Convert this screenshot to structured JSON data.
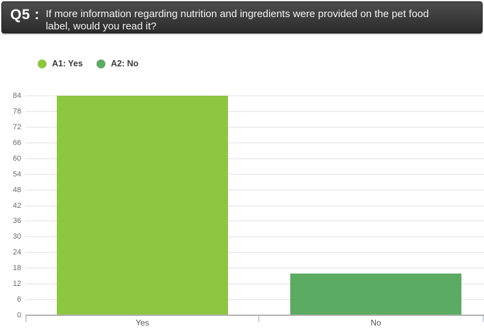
{
  "header": {
    "q_label": "Q5 :",
    "question": "If more information regarding nutrition and ingredients were provided on the pet food label, would you read it?"
  },
  "legend": {
    "items": [
      {
        "label": "A1: Yes",
        "color": "#8dc63f"
      },
      {
        "label": "A2: No",
        "color": "#5cab62"
      }
    ]
  },
  "chart_data": {
    "type": "bar",
    "title": "Q5: If more information regarding nutrition and ingredients were provided on the pet food label, would you read it?",
    "categories": [
      "Yes",
      "No"
    ],
    "values": [
      84,
      16
    ],
    "bar_colors": [
      "#8dc63f",
      "#5cab62"
    ],
    "legend_entries": [
      "A1: Yes",
      "A2: No"
    ],
    "legend_position": "top-left",
    "xlabel": "",
    "ylabel": "",
    "ylim": [
      0,
      84
    ],
    "ytick_step": 6,
    "yticks": [
      0,
      6,
      12,
      18,
      24,
      30,
      36,
      42,
      48,
      54,
      60,
      66,
      72,
      78,
      84
    ],
    "grid": true
  }
}
